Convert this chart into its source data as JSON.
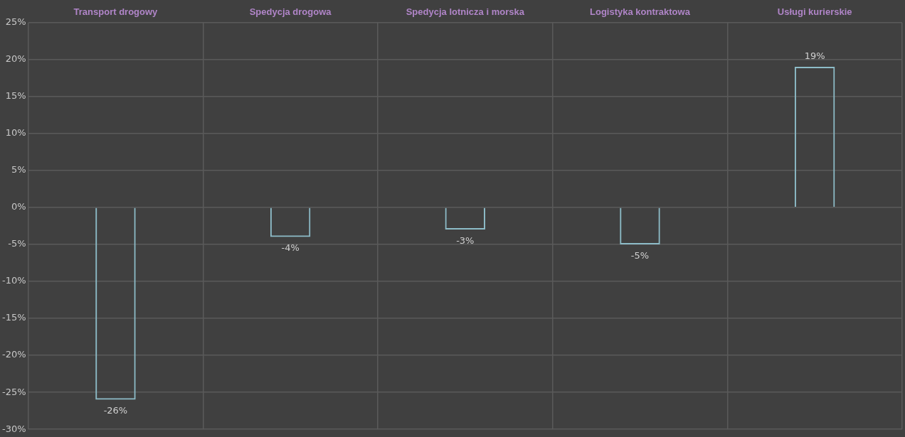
{
  "chart_data": {
    "type": "bar",
    "categories": [
      "Transport drogowy",
      "Spedycja drogowa",
      "Spedycja lotnicza i morska",
      "Logistyka kontraktowa",
      "Usługi kurierskie"
    ],
    "values": [
      -26,
      -4,
      -3,
      -5,
      19
    ],
    "color": "#8dbcc8",
    "value_labels": [
      "-26%",
      "-4%",
      "-3%",
      "-5%",
      "19%"
    ],
    "ylim": [
      -30,
      25
    ],
    "yticks": [
      {
        "value": -30,
        "label": "-30%"
      },
      {
        "value": -25,
        "label": "-25%"
      },
      {
        "value": -20,
        "label": "-20%"
      },
      {
        "value": -15,
        "label": "-15%"
      },
      {
        "value": -10,
        "label": "-10%"
      },
      {
        "value": -5,
        "label": "-5%"
      },
      {
        "value": 0,
        "label": "0%"
      },
      {
        "value": 5,
        "label": "5%"
      },
      {
        "value": 10,
        "label": "10%"
      },
      {
        "value": 15,
        "label": "15%"
      },
      {
        "value": 20,
        "label": "20%"
      },
      {
        "value": 25,
        "label": "25%"
      }
    ],
    "grid": true
  }
}
